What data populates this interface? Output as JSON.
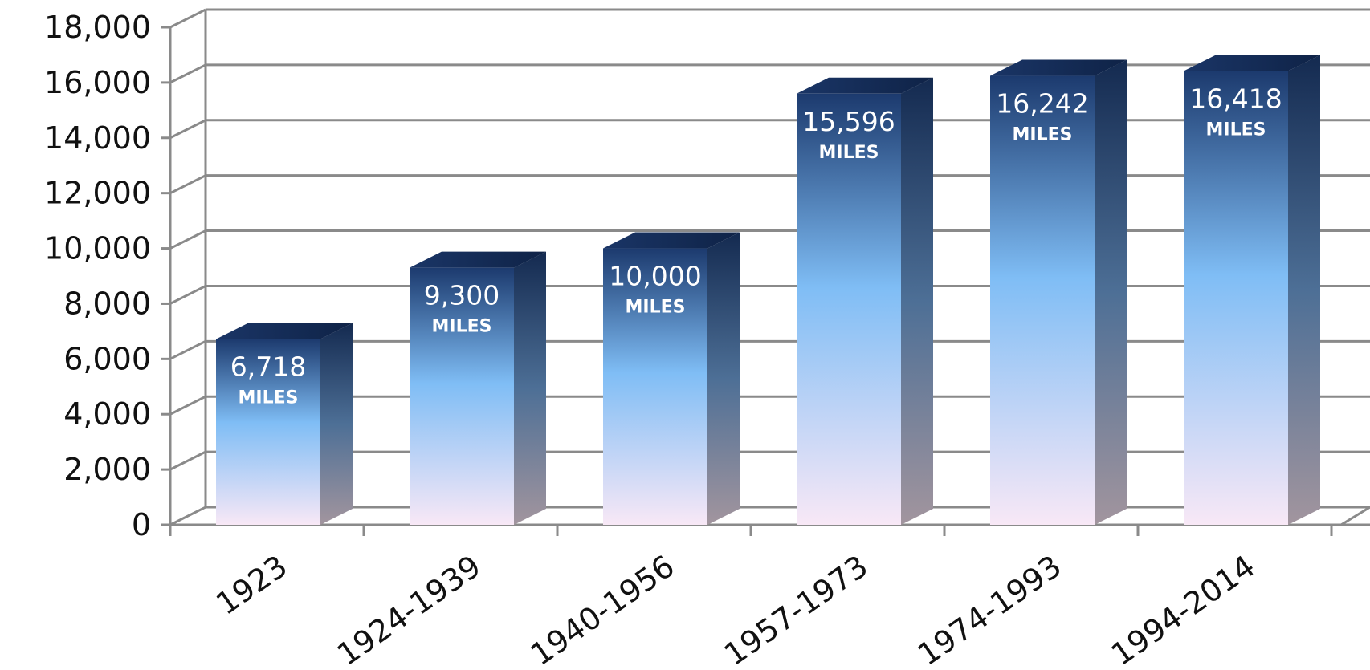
{
  "chart_data": {
    "type": "bar",
    "categories": [
      "1923",
      "1924-1939",
      "1940-1956",
      "1957-1973",
      "1974-1993",
      "1994-2014"
    ],
    "values": [
      6718,
      9300,
      10000,
      15596,
      16242,
      16418
    ],
    "data_labels": [
      {
        "value": "6,718",
        "unit": "MILES"
      },
      {
        "value": "9,300",
        "unit": "MILES"
      },
      {
        "value": "10,000",
        "unit": "MILES"
      },
      {
        "value": "15,596",
        "unit": "MILES"
      },
      {
        "value": "16,242",
        "unit": "MILES"
      },
      {
        "value": "16,418",
        "unit": "MILES"
      }
    ],
    "y_ticks": [
      "0",
      "2,000",
      "4,000",
      "6,000",
      "8,000",
      "10,000",
      "12,000",
      "14,000",
      "16,000",
      "18,000"
    ],
    "ylim": [
      0,
      18000
    ],
    "grid": true,
    "style": "3d-column",
    "title": "",
    "xlabel": "",
    "ylabel": "",
    "colors": {
      "bar_top": "#1c3a6e",
      "bar_mid": "#7fbdf5",
      "bar_bottom": "#f8e8f6",
      "grid": "#8a8a8a"
    }
  }
}
